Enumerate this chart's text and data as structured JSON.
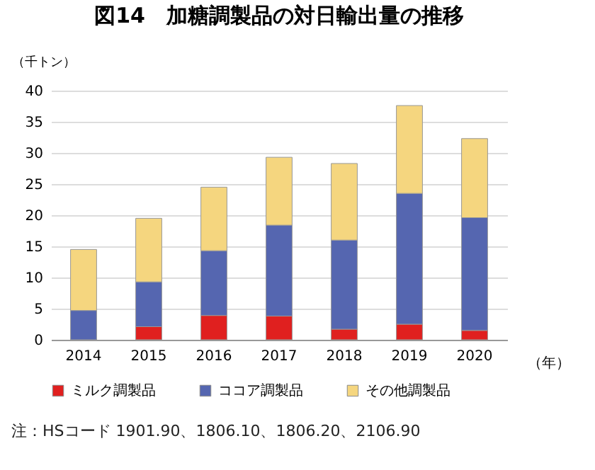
{
  "chart_data": {
    "type": "bar",
    "title": "図14　加糖調製品の対日輸出量の推移",
    "ylabel": "（千トン）",
    "xlabel": "（年）",
    "categories": [
      "2014",
      "2015",
      "2016",
      "2017",
      "2018",
      "2019",
      "2020"
    ],
    "stacked": true,
    "series": [
      {
        "name": "ミルク調製品",
        "color": "#e0201f",
        "values": [
          0,
          2.1,
          3.9,
          3.8,
          1.7,
          2.5,
          1.5
        ]
      },
      {
        "name": "ココア調製品",
        "color": "#5566b0",
        "values": [
          4.7,
          7.2,
          10.4,
          14.6,
          14.3,
          21.0,
          18.1
        ]
      },
      {
        "name": "その他調製品",
        "color": "#f5d67f",
        "values": [
          9.8,
          10.2,
          10.2,
          10.9,
          12.3,
          14.1,
          12.7
        ]
      }
    ],
    "ylim": [
      0,
      40
    ],
    "yticks": [
      0,
      5,
      10,
      15,
      20,
      25,
      30,
      35,
      40
    ],
    "grid": "y",
    "legend": "bottom",
    "annotations": [
      "注：HSコード 1901.90、1806.10、1806.20、2106.90"
    ]
  }
}
